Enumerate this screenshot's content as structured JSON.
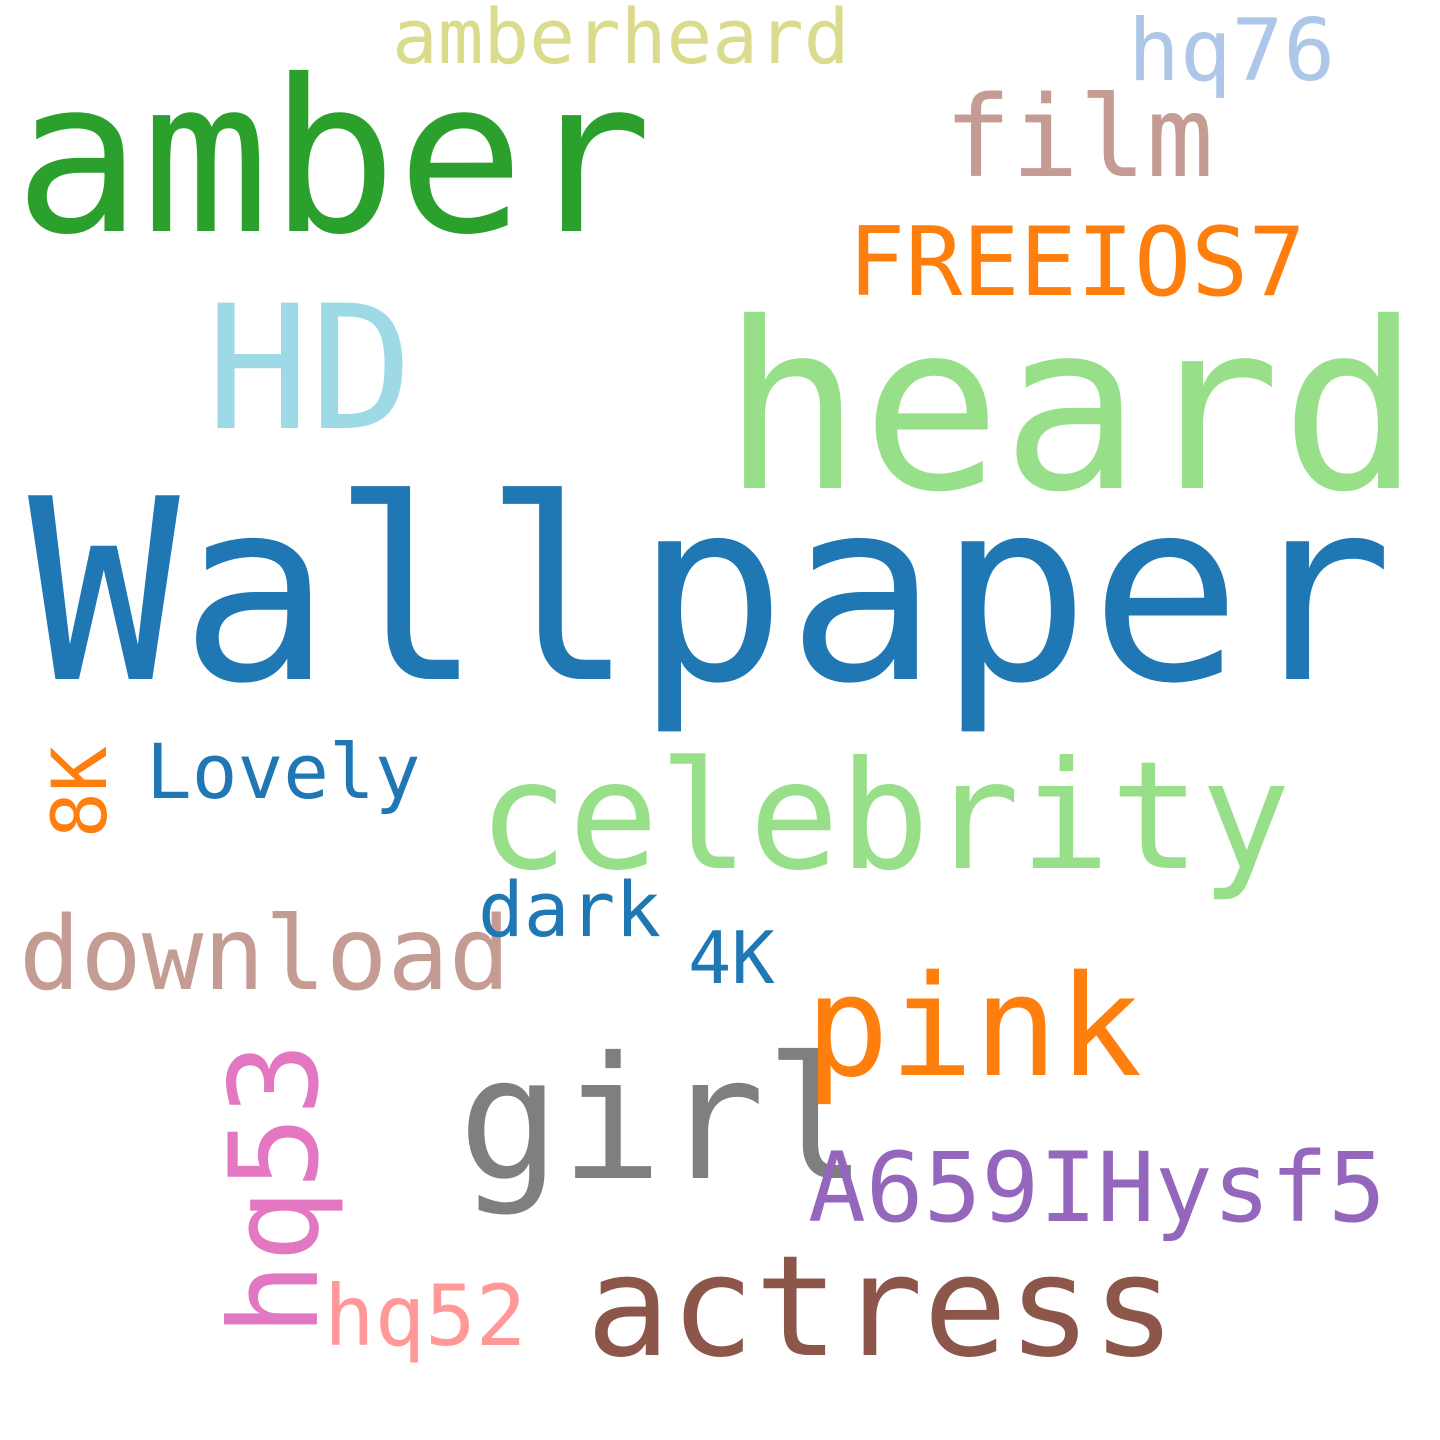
{
  "words": [
    {
      "text": "Wallpaper",
      "color": "#1f77b4"
    },
    {
      "text": "heard",
      "color": "#98df8a"
    },
    {
      "text": "amber",
      "color": "#2ca02c"
    },
    {
      "text": "HD",
      "color": "#9edae5"
    },
    {
      "text": "celebrity",
      "color": "#98df8a"
    },
    {
      "text": "girl",
      "color": "#7f7f7f"
    },
    {
      "text": "pink",
      "color": "#ff7f0e"
    },
    {
      "text": "actress",
      "color": "#8c564b"
    },
    {
      "text": "FREEIOS7",
      "color": "#ff7f0e"
    },
    {
      "text": "film",
      "color": "#c49c94"
    },
    {
      "text": "amberheard",
      "color": "#dbdb8d"
    },
    {
      "text": "hq76",
      "color": "#aec7e8"
    },
    {
      "text": "download",
      "color": "#c49c94"
    },
    {
      "text": "A659IHysf5",
      "color": "#9467bd"
    },
    {
      "text": "hq53",
      "color": "#e377c2"
    },
    {
      "text": "hq52",
      "color": "#ff9896"
    },
    {
      "text": "Lovely",
      "color": "#1f77b4"
    },
    {
      "text": "dark",
      "color": "#1f77b4"
    },
    {
      "text": "4K",
      "color": "#1f77b4"
    },
    {
      "text": "8K",
      "color": "#ff7f0e"
    }
  ]
}
